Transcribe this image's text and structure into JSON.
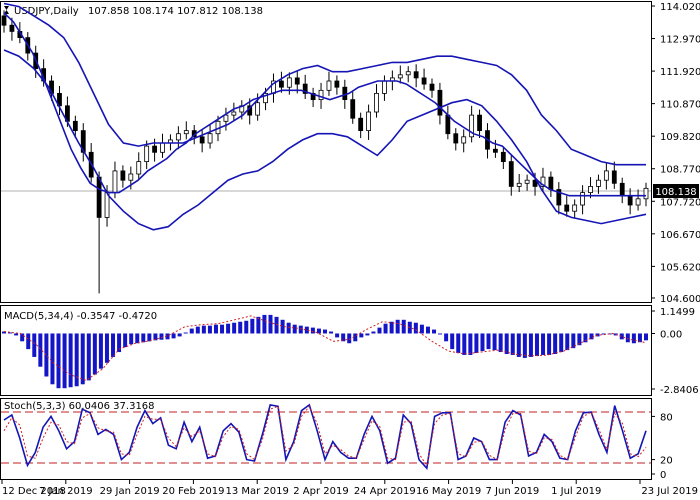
{
  "chart_data": [
    {
      "type": "candlestick",
      "title": "USDJPY,Daily",
      "ohlc_label": "107.858 108.174 107.812 108.138",
      "last_price": "108.138",
      "ylim": [
        104.6,
        114.02
      ],
      "price_ticks": [
        "114.020",
        "112.970",
        "111.920",
        "110.870",
        "109.820",
        "108.770",
        "107.720",
        "106.670",
        "105.620",
        "104.600"
      ],
      "date_ticks": [
        "12 Dec 2018",
        "7 Jan 2019",
        "29 Jan 2019",
        "20 Feb 2019",
        "13 Mar 2019",
        "2 Apr 2019",
        "24 Apr 2019",
        "16 May 2019",
        "7 Jun 2019",
        "1 Jul 2019",
        "23 Jul 2019"
      ],
      "series": [
        {
          "values": [
            113.4,
            113.2,
            113.0,
            112.5,
            112.0,
            111.6,
            111.2,
            110.8,
            110.3,
            110.0,
            109.3,
            108.5,
            107.2,
            108.0,
            108.7,
            108.4,
            108.6,
            109.0,
            109.5,
            109.3,
            109.6,
            109.7,
            109.9,
            110.0,
            109.8,
            109.6,
            109.9,
            110.3,
            110.5,
            110.6,
            110.8,
            110.5,
            110.9,
            111.2,
            111.6,
            111.4,
            111.7,
            111.5,
            111.2,
            111.0,
            111.3,
            111.6,
            111.4,
            111.0,
            110.4,
            110.0,
            110.6,
            111.2,
            111.6,
            111.7,
            111.8,
            111.9,
            111.7,
            111.5,
            111.3,
            110.5,
            109.9,
            109.6,
            109.8,
            110.5,
            110.0,
            109.4,
            109.3,
            109.0,
            108.2,
            108.3,
            108.4,
            108.2,
            108.5,
            108.1,
            107.6,
            107.4,
            107.6,
            108.0,
            108.2,
            108.4,
            108.7,
            108.3,
            107.9,
            107.6,
            107.8,
            108.138
          ]
        },
        {
          "values": [
            113.8,
            113.5,
            113.0,
            112.5,
            111.8,
            111.0,
            110.2,
            109.4,
            108.8,
            108.3,
            108.1,
            108.0,
            108.0,
            108.2,
            108.4,
            108.7,
            108.9,
            109.1,
            109.4,
            109.6,
            109.9,
            110.1,
            110.3,
            110.5,
            110.7,
            110.8,
            111.0,
            111.1,
            111.2,
            111.3,
            111.3,
            111.3,
            111.2,
            111.1,
            111.0,
            111.1,
            111.2,
            111.4,
            111.5,
            111.6,
            111.6,
            111.6,
            111.5,
            111.3,
            111.1,
            110.9,
            110.6,
            110.3,
            110.1,
            109.9,
            109.8,
            109.6,
            109.5,
            109.2,
            108.9,
            108.6,
            108.3,
            108.1,
            108.0,
            107.9,
            107.9,
            107.9,
            107.9,
            107.9,
            107.9,
            107.9,
            107.9,
            107.9
          ]
        },
        {
          "values": [
            114.1,
            114.0,
            113.7,
            113.4,
            113.0,
            112.2,
            111.2,
            110.2,
            109.6,
            109.5,
            109.6,
            109.6,
            109.6,
            109.8,
            110.0,
            110.2,
            110.5,
            111.0,
            111.5,
            111.8,
            112.0,
            112.1,
            111.9,
            111.9,
            112.0,
            112.1,
            112.2,
            112.2,
            112.3,
            112.4,
            112.4,
            112.3,
            112.2,
            112.1,
            111.8,
            111.3,
            110.5,
            110.0,
            109.4,
            109.2,
            109.0,
            108.9,
            108.9,
            108.9
          ]
        },
        {
          "values": [
            112.6,
            112.4,
            112.0,
            111.4,
            110.5,
            109.6,
            108.8,
            107.9,
            107.4,
            107.0,
            106.8,
            106.9,
            107.3,
            107.6,
            108.0,
            108.4,
            108.6,
            108.7,
            109.0,
            109.4,
            109.7,
            109.9,
            109.9,
            109.8,
            109.5,
            109.2,
            109.7,
            110.3,
            110.5,
            110.7,
            110.9,
            111.0,
            110.8,
            110.3,
            109.7,
            109.0,
            108.1,
            107.4,
            107.2,
            107.1,
            107.0,
            107.1,
            107.2,
            107.3
          ]
        }
      ]
    },
    {
      "type": "bar",
      "title": "MACD(5,34,4) -0.3547 -0.4720",
      "ylim": [
        -2.8406,
        1.1499
      ],
      "y_ticks": [
        "1.1499",
        "0.00",
        "-2.8406"
      ],
      "series": [
        {
          "values": [
            0.1,
            0.05,
            -0.1,
            -0.4,
            -0.8,
            -1.2,
            -1.7,
            -2.2,
            -2.6,
            -2.8,
            -2.8,
            -2.75,
            -2.7,
            -2.6,
            -2.4,
            -2.1,
            -1.8,
            -1.5,
            -1.2,
            -0.95,
            -0.7,
            -0.55,
            -0.5,
            -0.45,
            -0.4,
            -0.35,
            -0.32,
            -0.3,
            -0.25,
            -0.15,
            0.05,
            0.25,
            0.35,
            0.4,
            0.4,
            0.45,
            0.45,
            0.5,
            0.55,
            0.6,
            0.65,
            0.75,
            0.85,
            0.95,
            0.95,
            0.85,
            0.7,
            0.55,
            0.45,
            0.4,
            0.35,
            0.3,
            0.25,
            0.2,
            0.1,
            -0.2,
            -0.4,
            -0.5,
            -0.4,
            -0.2,
            -0.1,
            0.1,
            0.3,
            0.5,
            0.6,
            0.7,
            0.7,
            0.6,
            0.55,
            0.45,
            0.35,
            0.2,
            0.0,
            -0.4,
            -0.8,
            -1.0,
            -1.1,
            -1.1,
            -1.0,
            -0.9,
            -0.8,
            -0.85,
            -0.95,
            -1.05,
            -1.1,
            -1.2,
            -1.25,
            -1.2,
            -1.15,
            -1.1,
            -1.1,
            -1.05,
            -0.95,
            -0.85,
            -0.75,
            -0.6,
            -0.45,
            -0.3,
            -0.15,
            -0.05,
            0.0,
            -0.1,
            -0.3,
            -0.45,
            -0.5,
            -0.45,
            -0.35
          ]
        },
        {
          "values": [
            0.1,
            0.0,
            -0.6,
            -1.5,
            -2.1,
            -2.4,
            -1.8,
            -0.8,
            -0.5,
            -0.35,
            -0.1,
            0.35,
            0.45,
            0.5,
            0.7,
            0.9,
            0.6,
            0.35,
            0.25,
            0.05,
            -0.4,
            -0.3,
            0.2,
            0.6,
            0.5,
            0.2,
            -0.4,
            -0.9,
            -1.05,
            -0.95,
            -0.85,
            -1.05,
            -1.15,
            -1.1,
            -0.9,
            -0.5,
            -0.1,
            0.0,
            -0.3,
            -0.47
          ]
        }
      ]
    },
    {
      "type": "line",
      "title": "Stoch(5,3,3) 60.0406 37.3168",
      "ylim": [
        0,
        100
      ],
      "y_ticks": [
        "80",
        "20",
        "0"
      ],
      "levels": [
        80,
        20
      ],
      "series": [
        {
          "values": [
            75,
            82,
            50,
            12,
            30,
            65,
            80,
            60,
            35,
            45,
            90,
            85,
            55,
            62,
            55,
            20,
            30,
            65,
            88,
            70,
            78,
            40,
            35,
            72,
            45,
            65,
            22,
            25,
            60,
            70,
            58,
            20,
            18,
            55,
            96,
            94,
            20,
            45,
            88,
            96,
            60,
            20,
            45,
            30,
            22,
            22,
            55,
            80,
            60,
            15,
            22,
            82,
            70,
            20,
            8,
            80,
            85,
            85,
            20,
            25,
            50,
            45,
            20,
            20,
            72,
            88,
            82,
            25,
            30,
            55,
            45,
            22,
            20,
            60,
            85,
            86,
            55,
            30,
            95,
            60,
            22,
            28,
            60
          ]
        },
        {
          "values": [
            60,
            78,
            68,
            25,
            22,
            50,
            72,
            68,
            45,
            42,
            78,
            84,
            64,
            60,
            58,
            28,
            26,
            55,
            80,
            76,
            76,
            50,
            38,
            64,
            52,
            60,
            28,
            24,
            52,
            66,
            62,
            28,
            20,
            48,
            90,
            94,
            32,
            40,
            80,
            94,
            70,
            28,
            40,
            34,
            25,
            22,
            48,
            74,
            66,
            22,
            20,
            72,
            74,
            28,
            12,
            70,
            82,
            84,
            28,
            24,
            44,
            46,
            26,
            20,
            62,
            84,
            84,
            32,
            28,
            50,
            48,
            26,
            20,
            52,
            80,
            86,
            62,
            34,
            84,
            70,
            28,
            24,
            37
          ]
        }
      ]
    }
  ]
}
